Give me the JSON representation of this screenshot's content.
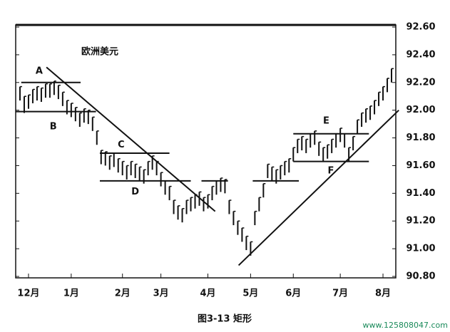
{
  "chart_data": {
    "type": "hilo",
    "title": "欧洲美元",
    "caption": "图3-13 矩形",
    "watermark": "www.125808047.com",
    "x": [
      0,
      1,
      2,
      3,
      4,
      5,
      6,
      7,
      8,
      9,
      10,
      11,
      12,
      13,
      14,
      15,
      16,
      17,
      18,
      19,
      20,
      21,
      22,
      23,
      24,
      25,
      26,
      27,
      28,
      29,
      30,
      31,
      32,
      33,
      34,
      35,
      36,
      37,
      38,
      39,
      40,
      41,
      42,
      43,
      44,
      45,
      46,
      47,
      48,
      49,
      50,
      51,
      52,
      53,
      54,
      55,
      56,
      57,
      58,
      59,
      60,
      61,
      62,
      63,
      64,
      65,
      66,
      67,
      68,
      69,
      70,
      71,
      72,
      73,
      74,
      75,
      76,
      77,
      78,
      79,
      80,
      81,
      82,
      83,
      84,
      85,
      86,
      87
    ],
    "series": [
      {
        "color": "#111111",
        "high": [
          92.17,
          92.1,
          92.11,
          92.15,
          92.17,
          92.16,
          92.19,
          92.19,
          92.21,
          92.18,
          92.13,
          92.07,
          92.05,
          92.02,
          91.98,
          92.01,
          92.0,
          91.95,
          91.85,
          91.71,
          91.7,
          91.67,
          91.69,
          91.65,
          91.63,
          91.6,
          91.63,
          91.61,
          91.59,
          91.57,
          91.63,
          91.67,
          91.63,
          91.55,
          91.49,
          91.45,
          91.35,
          91.31,
          91.29,
          91.35,
          91.37,
          91.39,
          91.41,
          91.37,
          91.39,
          91.45,
          91.49,
          91.51,
          91.5,
          91.35,
          91.27,
          91.2,
          91.15,
          91.09,
          91.05,
          91.27,
          91.37,
          91.47,
          91.61,
          91.59,
          91.57,
          91.6,
          91.63,
          91.65,
          91.73,
          91.79,
          91.81,
          91.79,
          91.83,
          91.85,
          91.77,
          91.73,
          91.75,
          91.79,
          91.83,
          91.87,
          91.83,
          91.73,
          91.81,
          91.93,
          91.98,
          92.01,
          92.03,
          92.07,
          92.13,
          92.17,
          92.23,
          92.3
        ],
        "low": [
          92.07,
          91.98,
          92.01,
          92.05,
          92.07,
          92.06,
          92.09,
          92.09,
          92.11,
          92.08,
          92.03,
          91.97,
          91.95,
          91.92,
          91.88,
          91.91,
          91.9,
          91.85,
          91.75,
          91.61,
          91.6,
          91.57,
          91.59,
          91.55,
          91.53,
          91.5,
          91.53,
          91.51,
          91.49,
          91.47,
          91.53,
          91.57,
          91.53,
          91.45,
          91.39,
          91.35,
          91.25,
          91.21,
          91.19,
          91.25,
          91.27,
          91.29,
          91.31,
          91.27,
          91.29,
          91.35,
          91.39,
          91.41,
          91.4,
          91.25,
          91.17,
          91.1,
          91.05,
          90.99,
          90.95,
          91.17,
          91.27,
          91.37,
          91.51,
          91.49,
          91.47,
          91.5,
          91.53,
          91.55,
          91.63,
          91.69,
          91.71,
          91.69,
          91.73,
          91.75,
          91.67,
          91.63,
          91.65,
          91.69,
          91.73,
          91.77,
          91.73,
          91.63,
          91.71,
          91.83,
          91.88,
          91.91,
          91.93,
          91.97,
          92.03,
          92.07,
          92.13,
          92.2
        ]
      }
    ],
    "lines": [
      {
        "x": [
          0.3,
          14.2
        ],
        "y": [
          92.2,
          92.2
        ]
      },
      {
        "x": [
          -1,
          17.8
        ],
        "y": [
          91.99,
          91.99
        ]
      },
      {
        "x": [
          6.2,
          45.7
        ],
        "y": [
          92.31,
          91.27
        ]
      },
      {
        "x": [
          18.7,
          35
        ],
        "y": [
          91.69,
          91.69
        ]
      },
      {
        "x": [
          18.7,
          40
        ],
        "y": [
          91.49,
          91.49
        ]
      },
      {
        "x": [
          42.5,
          48.7
        ],
        "y": [
          91.49,
          91.49
        ]
      },
      {
        "x": [
          54.5,
          65.3
        ],
        "y": [
          91.49,
          91.49
        ]
      },
      {
        "x": [
          64,
          81.7
        ],
        "y": [
          91.83,
          91.83
        ]
      },
      {
        "x": [
          64,
          81.7
        ],
        "y": [
          91.63,
          91.63
        ]
      },
      {
        "x": [
          51.2,
          88.7
        ],
        "y": [
          90.88,
          92.0
        ]
      }
    ],
    "annotations": [
      {
        "text": "A",
        "x": 4.5,
        "y": 92.28
      },
      {
        "text": "B",
        "x": 7.8,
        "y": 91.88
      },
      {
        "text": "C",
        "x": 23.7,
        "y": 91.75
      },
      {
        "text": "D",
        "x": 27,
        "y": 91.41
      },
      {
        "text": "E",
        "x": 71.7,
        "y": 91.92
      },
      {
        "text": "F",
        "x": 72.8,
        "y": 91.56
      }
    ],
    "xlim": [
      -1,
      88
    ],
    "xticks": [
      {
        "value": 2,
        "label": "12月"
      },
      {
        "value": 12,
        "label": "1月"
      },
      {
        "value": 24,
        "label": "2月"
      },
      {
        "value": 33,
        "label": "3月"
      },
      {
        "value": 44,
        "label": "4月"
      },
      {
        "value": 54,
        "label": "5月"
      },
      {
        "value": 64,
        "label": "6月"
      },
      {
        "value": 75,
        "label": "7月"
      },
      {
        "value": 85,
        "label": "8月"
      }
    ],
    "ylim": [
      90.8,
      92.6
    ],
    "yticks": [
      {
        "value": 90.8,
        "label": "90.80"
      },
      {
        "value": 91.0,
        "label": "91.00"
      },
      {
        "value": 91.2,
        "label": "91.20"
      },
      {
        "value": 91.4,
        "label": "91.40"
      },
      {
        "value": 91.6,
        "label": "91.60"
      },
      {
        "value": 91.8,
        "label": "91.80"
      },
      {
        "value": 92.0,
        "label": "92.00"
      },
      {
        "value": 92.2,
        "label": "92.20"
      },
      {
        "value": 92.4,
        "label": "92.40"
      },
      {
        "value": 92.6,
        "label": "92.60"
      }
    ]
  }
}
